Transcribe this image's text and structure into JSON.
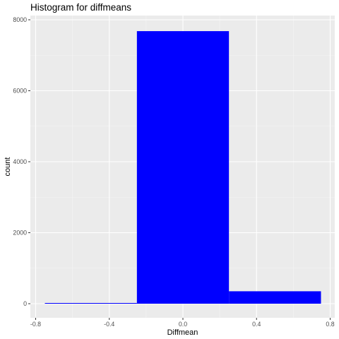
{
  "chart_data": {
    "type": "bar",
    "title": "Histogram for diffmeans",
    "xlabel": "Diffmean",
    "ylabel": "count",
    "xlim": [
      -0.8,
      0.8
    ],
    "ylim": [
      0,
      8000
    ],
    "x_ticks": [
      "-0.8",
      "-0.4",
      "0.0",
      "0.4",
      "0.8"
    ],
    "y_ticks": [
      "0",
      "2000",
      "4000",
      "6000",
      "8000"
    ],
    "bins": [
      {
        "x_start": -0.75,
        "x_end": -0.25,
        "count": 5
      },
      {
        "x_start": -0.25,
        "x_end": 0.25,
        "count": 7680
      },
      {
        "x_start": 0.25,
        "x_end": 0.75,
        "count": 350
      }
    ],
    "bar_color": "#0000ff",
    "panel_background": "#ebebeb",
    "grid": true,
    "legend": "none"
  }
}
